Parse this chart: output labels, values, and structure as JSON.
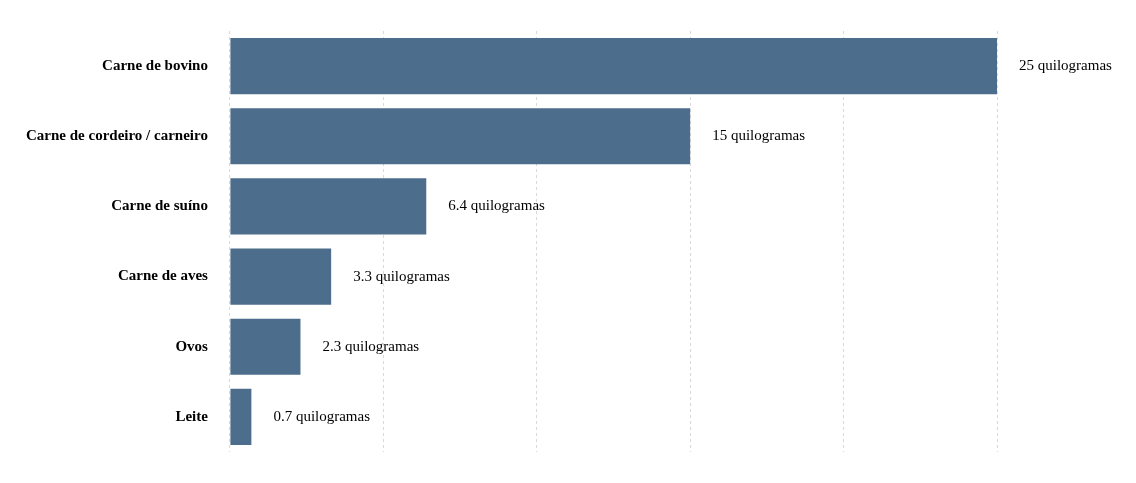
{
  "chart_data": {
    "type": "bar",
    "orientation": "horizontal",
    "categories": [
      "Carne de bovino",
      "Carne de cordeiro / carneiro",
      "Carne de suíno",
      "Carne de aves",
      "Ovos",
      "Leite"
    ],
    "values": [
      25,
      15,
      6.4,
      3.3,
      2.3,
      0.7
    ],
    "value_labels": [
      "25 quilogramas",
      "15 quilogramas",
      "6.4 quilogramas",
      "3.3 quilogramas",
      "2.3 quilogramas",
      "0.7 quilogramas"
    ],
    "color": "#4c6e8c",
    "xlim": [
      0,
      25
    ],
    "xticks": [
      {
        "value": 0,
        "label": null
      },
      {
        "value": 5,
        "label": null
      },
      {
        "value": 10,
        "label": null
      },
      {
        "value": 15,
        "label": null
      },
      {
        "value": 20,
        "label": null
      },
      {
        "value": 25,
        "label": null
      }
    ],
    "grid": "x",
    "tick_labels": "y",
    "legend": false
  }
}
